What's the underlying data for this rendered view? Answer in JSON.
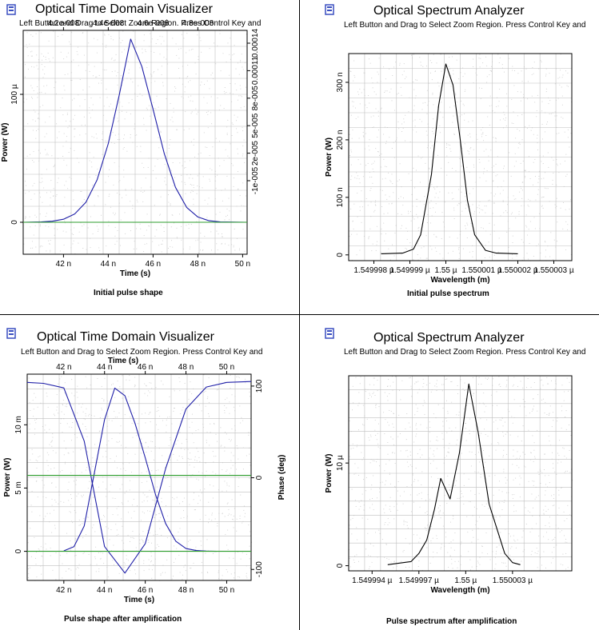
{
  "colors": {
    "pulse": "#1f1fa8",
    "reference": "#2e9e2e",
    "spectrum": "#000000",
    "grid": "#bfbfbf",
    "icon": "#3a4fc0"
  },
  "icons": {
    "window": "window-icon"
  },
  "chart_data": [
    {
      "type": "line",
      "window_title": "Optical Time Domain Visualizer",
      "hint": "Left Button and Drag to Select Zoom Region. Press Control Key and",
      "caption": "Initial pulse shape",
      "xlabel": "Time (s)",
      "ylabel": "Power (W)",
      "xlim": [
        40.2,
        50.2
      ],
      "ylim": [
        -25,
        150
      ],
      "x_ticks": [
        {
          "v": 42,
          "label": "42 n"
        },
        {
          "v": 44,
          "label": "44 n"
        },
        {
          "v": 46,
          "label": "46 n"
        },
        {
          "v": 48,
          "label": "48 n"
        },
        {
          "v": 50,
          "label": "50 n"
        }
      ],
      "y_ticks": [
        {
          "v": 0,
          "label": "0"
        },
        {
          "v": 100,
          "label": "100 µ"
        }
      ],
      "top_ticks": [
        {
          "v": 42,
          "label": "4.2e-008"
        },
        {
          "v": 44,
          "label": "4.4e-008"
        },
        {
          "v": 46,
          "label": "4.6e-008"
        },
        {
          "v": 48,
          "label": "4.8e-008"
        }
      ],
      "right_ticks": [
        {
          "v": 140,
          "label": "0.00014"
        },
        {
          "v": 118.5,
          "label": "0.00011"
        },
        {
          "v": 97,
          "label": "8e-005"
        },
        {
          "v": 75.5,
          "label": "5e-005"
        },
        {
          "v": 54,
          "label": "2e-005"
        },
        {
          "v": 32.5,
          "label": "-1e-005"
        }
      ],
      "series": [
        {
          "kind": "pulse",
          "x": [
            40.2,
            41.0,
            41.5,
            42.0,
            42.5,
            43.0,
            43.5,
            44.0,
            44.5,
            45.0,
            45.5,
            46.0,
            46.5,
            47.0,
            47.5,
            48.0,
            48.5,
            49.0,
            50.2
          ],
          "y": [
            0,
            0.3,
            0.8,
            2.4,
            6.5,
            15.6,
            33.1,
            61.5,
            100.3,
            143.2,
            121.7,
            88.3,
            53.7,
            27.3,
            11.6,
            4.1,
            1.2,
            0.3,
            0
          ]
        },
        {
          "kind": "reference",
          "x": [
            40.2,
            50.2
          ],
          "y": [
            0,
            0
          ]
        }
      ]
    },
    {
      "type": "line",
      "window_title": "Optical Spectrum Analyzer",
      "hint": "Left Button and Drag to Select Zoom Region. Press Control Key and",
      "caption": "Initial pulse spectrum",
      "xlabel": "Wavelength (m)",
      "ylabel": "Power (W)",
      "xlim": [
        1.5499973,
        1.5500035
      ],
      "ylim": [
        -10,
        350
      ],
      "x_ticks": [
        {
          "v": 1.549998,
          "label": "1.549998 µ"
        },
        {
          "v": 1.549999,
          "label": "1.549999 µ"
        },
        {
          "v": 1.55,
          "label": "1.55 µ"
        },
        {
          "v": 1.550001,
          "label": "1.550001 µ"
        },
        {
          "v": 1.550002,
          "label": "1.550002 µ"
        },
        {
          "v": 1.550003,
          "label": "1.550003 µ"
        }
      ],
      "y_ticks": [
        {
          "v": 0,
          "label": "0"
        },
        {
          "v": 100,
          "label": "100 n"
        },
        {
          "v": 200,
          "label": "200 n"
        },
        {
          "v": 300,
          "label": "300 n"
        }
      ],
      "series": [
        {
          "kind": "spectrum",
          "x": [
            1.5499982,
            1.5499988,
            1.5499991,
            1.5499993,
            1.5499996,
            1.5499998,
            1.55,
            1.5500002,
            1.5500004,
            1.5500006,
            1.5500008,
            1.5500011,
            1.5500014,
            1.550002
          ],
          "y": [
            2,
            3,
            10,
            35,
            140,
            260,
            332,
            295,
            200,
            95,
            35,
            8,
            3,
            2
          ]
        }
      ]
    },
    {
      "type": "line",
      "window_title": "Optical Time Domain Visualizer",
      "hint": "Left Button and Drag to Select Zoom Region. Press Control Key and",
      "caption": "Pulse shape after amplification",
      "xlabel": "Time (s)",
      "top_label": "Time (s)",
      "ylabel": "Power (W)",
      "y2label": "Phase (deg)",
      "xlim": [
        40.2,
        51.2
      ],
      "ylim": [
        -2.3,
        14
      ],
      "y2lim": [
        -112,
        113
      ],
      "x_ticks": [
        {
          "v": 42,
          "label": "42 n"
        },
        {
          "v": 44,
          "label": "44 n"
        },
        {
          "v": 46,
          "label": "46 n"
        },
        {
          "v": 48,
          "label": "48 n"
        },
        {
          "v": 50,
          "label": "50 n"
        }
      ],
      "top_ticks": [
        {
          "v": 42,
          "label": "42 n"
        },
        {
          "v": 44,
          "label": "44 n"
        },
        {
          "v": 46,
          "label": "46 n"
        },
        {
          "v": 48,
          "label": "48 n"
        },
        {
          "v": 50,
          "label": "50 n"
        }
      ],
      "y_ticks": [
        {
          "v": 0,
          "label": "0"
        },
        {
          "v": 5,
          "label": "5 m"
        },
        {
          "v": 10,
          "label": "10 m"
        }
      ],
      "right_ticks": [
        {
          "v": 100,
          "label": "100"
        },
        {
          "v": 0,
          "label": "0"
        },
        {
          "v": -100,
          "label": "-100"
        }
      ],
      "series": [
        {
          "kind": "pulse",
          "x": [
            42.0,
            42.5,
            43.0,
            43.5,
            44.0,
            44.5,
            45.0,
            45.5,
            46.0,
            46.5,
            47.0,
            47.5,
            48.0,
            48.5,
            49.0,
            49.5
          ],
          "y": [
            0.04,
            0.37,
            2.0,
            6.2,
            10.4,
            12.9,
            12.3,
            10.1,
            7.4,
            4.5,
            2.2,
            0.8,
            0.22,
            0.06,
            0.02,
            0.0
          ]
        },
        {
          "kind": "phase",
          "axis": "y2",
          "x": [
            40.2,
            41.0,
            42.0,
            43.0,
            44.0,
            45.0,
            46.0,
            47.0,
            48.0,
            49.0,
            50.0,
            51.2
          ],
          "y": [
            104,
            103,
            98,
            40,
            -75,
            -104,
            -72,
            10,
            75,
            99,
            104,
            105
          ]
        },
        {
          "kind": "reference",
          "x": [
            40.2,
            51.2
          ],
          "y": [
            0,
            0
          ]
        },
        {
          "kind": "reference",
          "x": [
            40.2,
            51.2
          ],
          "y": [
            6,
            6
          ]
        }
      ]
    },
    {
      "type": "line",
      "window_title": "Optical Spectrum Analyzer",
      "hint": "Left Button and Drag to Select Zoom Region. Press Control Key and",
      "caption": "Pulse spectrum after amplification",
      "xlabel": "Wavelength (m)",
      "ylabel": "Power (W)",
      "xlim": [
        1.5499925,
        1.5500068
      ],
      "ylim": [
        -0.5,
        18.5
      ],
      "x_ticks": [
        {
          "v": 1.549994,
          "label": "1.549994 µ"
        },
        {
          "v": 1.549997,
          "label": "1.549997 µ"
        },
        {
          "v": 1.55,
          "label": "1.55 µ"
        },
        {
          "v": 1.550003,
          "label": "1.550003 µ"
        }
      ],
      "y_ticks": [
        {
          "v": 0,
          "label": "0"
        },
        {
          "v": 10,
          "label": "10 µ"
        }
      ],
      "series": [
        {
          "kind": "spectrum",
          "x": [
            1.549995,
            1.5499965,
            1.549997,
            1.5499975,
            1.549998,
            1.5499984,
            1.549999,
            1.5499996,
            1.5500002,
            1.5500008,
            1.5500015,
            1.5500025,
            1.550003,
            1.5500035
          ],
          "y": [
            0.1,
            0.4,
            1.2,
            2.5,
            5.5,
            8.5,
            6.5,
            11.0,
            17.7,
            13.0,
            6.0,
            1.2,
            0.3,
            0.1
          ]
        }
      ]
    }
  ]
}
